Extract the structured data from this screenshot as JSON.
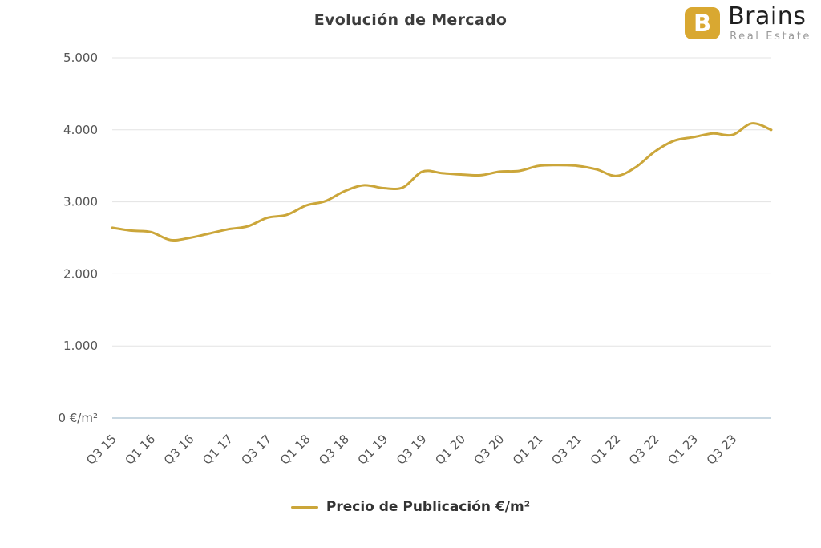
{
  "title": "Evolución de Mercado",
  "logo": {
    "brand": "Brains",
    "subtitle": "Real Estate",
    "icon_letter": "B",
    "icon_color": "#D9A831"
  },
  "legend": {
    "label": "Precio de Publicación €/m²"
  },
  "chart_style": {
    "line_color": "#CBA63A",
    "grid_color": "#e3e3e3",
    "axis_color": "#c9d8e2",
    "tick_color": "#555555"
  },
  "chart_data": {
    "type": "line",
    "title": "Evolución de Mercado",
    "xlabel": "",
    "ylabel": "€/m²",
    "ylim": [
      0,
      5000
    ],
    "yticks": [
      0,
      1000,
      2000,
      3000,
      4000,
      5000
    ],
    "ytick_labels": [
      "0 €/m²",
      "1.000",
      "2.000",
      "3.000",
      "4.000",
      "5.000"
    ],
    "x": [
      "Q3 15",
      "Q4 15",
      "Q1 16",
      "Q2 16",
      "Q3 16",
      "Q4 16",
      "Q1 17",
      "Q2 17",
      "Q3 17",
      "Q4 17",
      "Q1 18",
      "Q2 18",
      "Q3 18",
      "Q4 18",
      "Q1 19",
      "Q2 19",
      "Q3 19",
      "Q4 19",
      "Q1 20",
      "Q2 20",
      "Q3 20",
      "Q4 20",
      "Q1 21",
      "Q2 21",
      "Q3 21",
      "Q4 21",
      "Q1 22",
      "Q2 22",
      "Q3 22",
      "Q4 22",
      "Q1 23",
      "Q2 23",
      "Q3 23",
      "Q4 23",
      "Q1 24"
    ],
    "x_label_every": 2,
    "x_tick_labels": [
      "Q3 15",
      "Q1 16",
      "Q3 16",
      "Q1 17",
      "Q3 17",
      "Q1 18",
      "Q3 18",
      "Q1 19",
      "Q3 19",
      "Q1 20",
      "Q3 20",
      "Q1 21",
      "Q3 21",
      "Q1 22",
      "Q3 22",
      "Q1 23",
      "Q3 23"
    ],
    "grid": "horizontal",
    "legend_position": "bottom",
    "series": [
      {
        "name": "Precio de Publicación €/m²",
        "color": "#CBA63A",
        "values": [
          2640,
          2600,
          2580,
          2470,
          2500,
          2560,
          2620,
          2660,
          2780,
          2820,
          2950,
          3010,
          3150,
          3230,
          3190,
          3200,
          3420,
          3400,
          3380,
          3370,
          3420,
          3430,
          3500,
          3510,
          3500,
          3450,
          3360,
          3480,
          3700,
          3850,
          3900,
          3950,
          3930,
          4090,
          4000
        ]
      }
    ]
  }
}
